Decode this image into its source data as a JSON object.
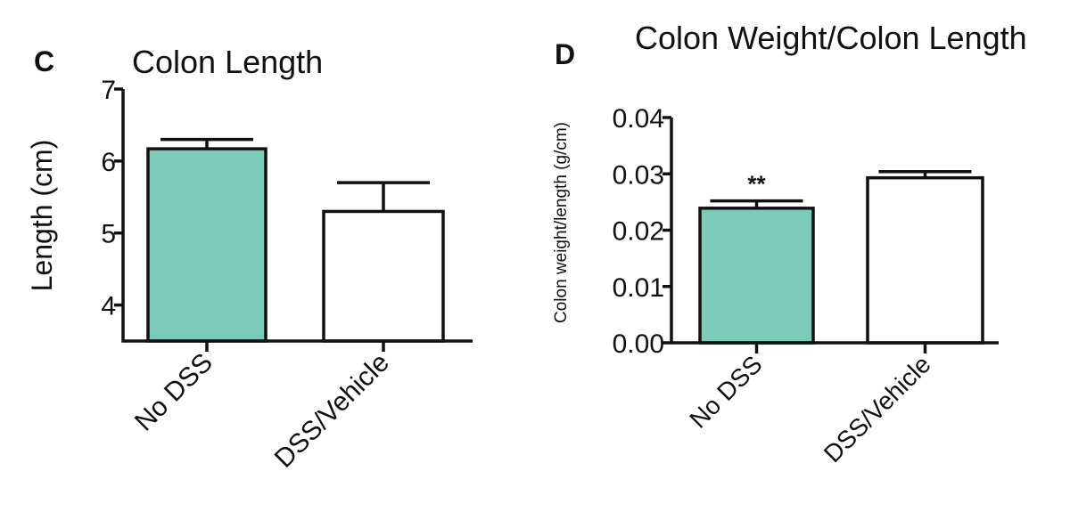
{
  "chart_data": [
    {
      "panel": "C",
      "type": "bar",
      "title": "Colon Length",
      "ylabel": "Length (cm)",
      "xlabel": "",
      "categories": [
        "No DSS",
        "DSS/Vehicle"
      ],
      "values": [
        6.17,
        5.3
      ],
      "error_upper": [
        6.3,
        5.7
      ],
      "ylim": [
        3.5,
        7
      ],
      "yticks": [
        4,
        5,
        6,
        7
      ],
      "ytick_labels": [
        "4",
        "5",
        "6",
        "7"
      ],
      "bar_colors": [
        "#7ccbb9",
        "#ffffff"
      ],
      "annotations": [
        "",
        ""
      ],
      "grid": false
    },
    {
      "panel": "D",
      "type": "bar",
      "title": "Colon Weight/Colon Length",
      "ylabel": "Colon weight/length (g/cm)",
      "xlabel": "",
      "categories": [
        "No DSS",
        "DSS/Vehicle"
      ],
      "values": [
        0.0239,
        0.0293
      ],
      "error_upper": [
        0.0252,
        0.0304
      ],
      "ylim": [
        0,
        0.04
      ],
      "yticks": [
        0,
        0.01,
        0.02,
        0.03,
        0.04
      ],
      "ytick_labels": [
        "0.00",
        "0.01",
        "0.02",
        "0.03",
        "0.04"
      ],
      "bar_colors": [
        "#7ccbb9",
        "#ffffff"
      ],
      "annotations": [
        "**",
        ""
      ],
      "grid": false
    }
  ]
}
